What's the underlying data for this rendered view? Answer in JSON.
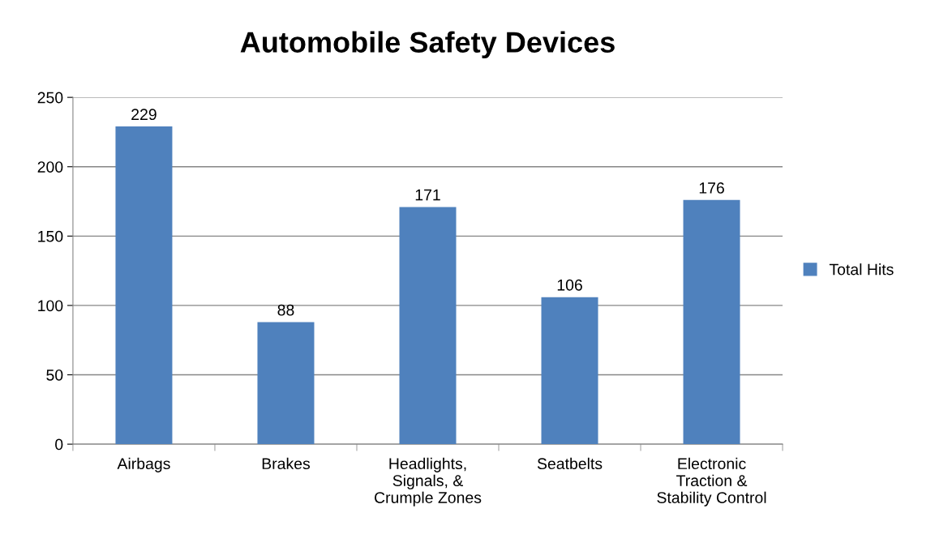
{
  "chart_data": {
    "type": "bar",
    "title": "Automobile Safety Devices",
    "categories": [
      "Airbags",
      "Brakes",
      "Headlights,\nSignals, &\nCrumple Zones",
      "Seatbelts",
      "Electronic\nTraction &\nStability Control"
    ],
    "series": [
      {
        "name": "Total Hits",
        "color": "#4f81bd",
        "values": [
          229,
          88,
          171,
          106,
          176
        ]
      }
    ],
    "ylim": [
      0,
      250
    ],
    "yticks": [
      0,
      50,
      100,
      150,
      200,
      250
    ],
    "grid": "y",
    "legend": "right",
    "data_labels": true
  }
}
